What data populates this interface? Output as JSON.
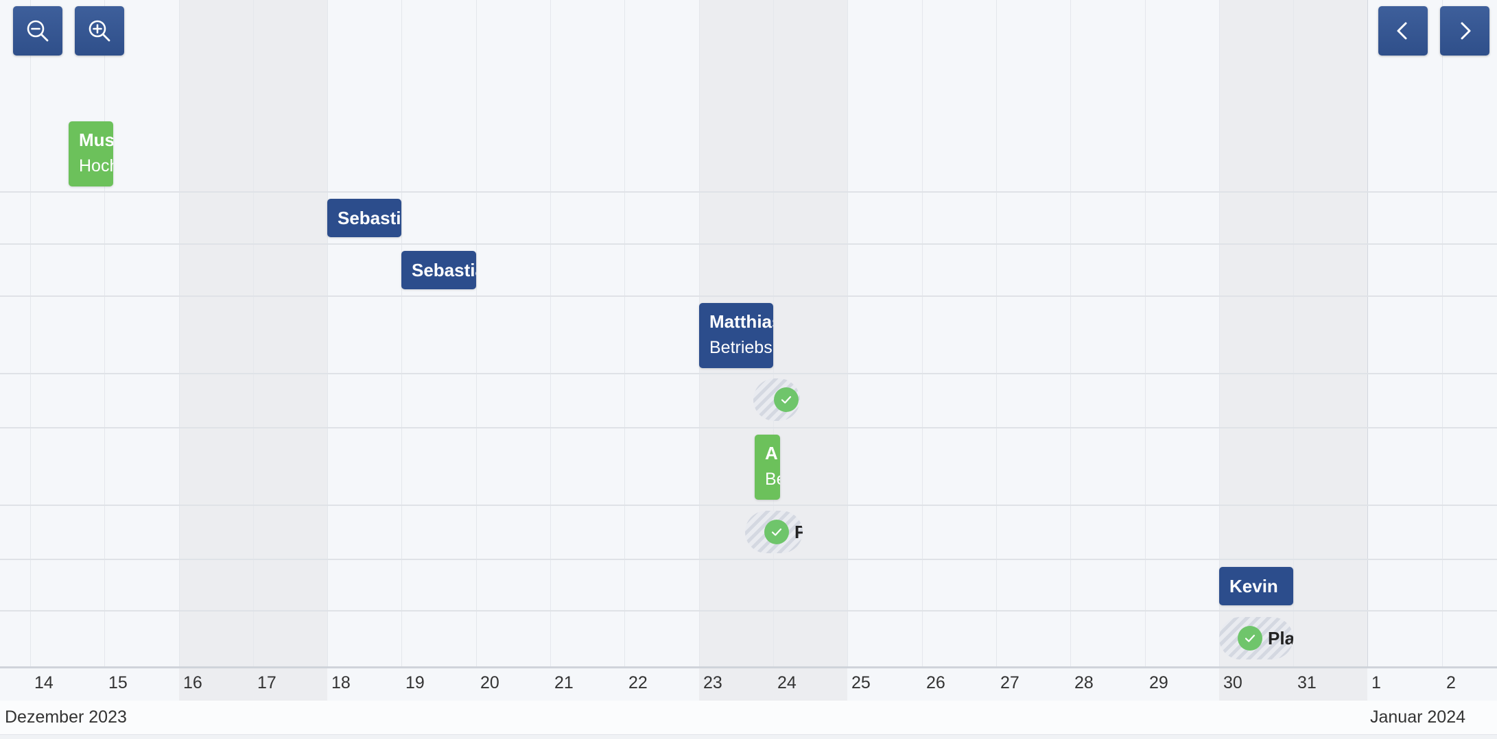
{
  "toolbar": {
    "zoom_out": "zoom-out-icon",
    "zoom_in": "zoom-in-icon",
    "prev": "chevron-left-icon",
    "next": "chevron-right-icon",
    "button_color": "#2f4f8a"
  },
  "axis": {
    "days": [
      "14",
      "15",
      "16",
      "17",
      "18",
      "19",
      "20",
      "21",
      "22",
      "23",
      "24",
      "25",
      "26",
      "27",
      "28",
      "29",
      "30",
      "31",
      "1",
      "2"
    ],
    "months": [
      "Dezember 2023",
      "Januar 2024"
    ]
  },
  "colors": {
    "blue_event": "#2c4d8c",
    "green_event": "#6cc15b",
    "check": "#6fc56b",
    "weekend_shade": "#ecedf0"
  },
  "events": {
    "e1": {
      "title": "Mus",
      "subtitle": "Hoch",
      "color": "green"
    },
    "e2": {
      "title": "Sebastia",
      "color": "blue"
    },
    "e3": {
      "title": "Sebastia",
      "color": "blue"
    },
    "e4": {
      "title": "Matthias",
      "subtitle": "Betriebs",
      "color": "blue"
    },
    "e5": {
      "title": "",
      "status": "approved"
    },
    "e6": {
      "title": "A",
      "subtitle": "Be",
      "color": "green"
    },
    "e7": {
      "title": "F",
      "status": "approved"
    },
    "e8": {
      "title": "Kevin",
      "color": "blue"
    },
    "e9": {
      "title": "Pla",
      "status": "approved"
    }
  }
}
